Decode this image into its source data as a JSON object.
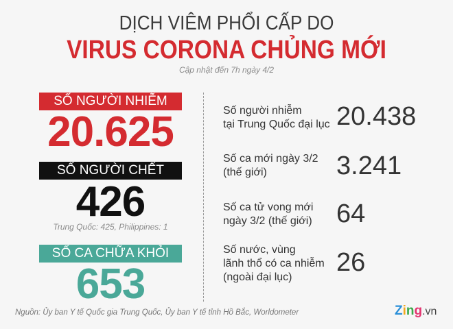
{
  "title_line1": "DỊCH VIÊM PHỔI CẤP DO",
  "title_line2": "VIRUS CORONA CHỦNG MỚI",
  "updated": "Cập nhật đến 7h ngày 4/2",
  "colors": {
    "red": "#d42b30",
    "black": "#111111",
    "teal": "#4aa898",
    "background": "#f6f6f6"
  },
  "left": {
    "infected": {
      "label": "SỐ NGƯỜI NHIỄM",
      "value": "20.625"
    },
    "deaths": {
      "label": "SỐ NGƯỜI CHẾT",
      "value": "426",
      "note": "Trung Quốc: 425, Philippines: 1"
    },
    "recovered": {
      "label": "SỐ CA CHỮA KHỎI",
      "value": "653"
    }
  },
  "right": [
    {
      "label_lines": [
        "Số người nhiễm",
        "tại Trung Quốc đại lục"
      ],
      "value": "20.438"
    },
    {
      "label_lines": [
        "Số ca mới ngày 3/2",
        "(thế giới)"
      ],
      "value": "3.241"
    },
    {
      "label_lines": [
        "Số ca tử vong mới",
        "ngày 3/2 (thế giới)"
      ],
      "value": "64"
    },
    {
      "label_lines": [
        "Số nước, vùng",
        "lãnh thổ có ca nhiễm",
        "(ngoài đại lục)"
      ],
      "value": "26"
    }
  ],
  "source": "Nguồn: Ủy ban Y tế Quốc gia Trung Quốc, Ủy ban Y tế tỉnh Hồ Bắc, Worldometer",
  "logo": {
    "brand": "Zing",
    ".vn": ".vn"
  }
}
